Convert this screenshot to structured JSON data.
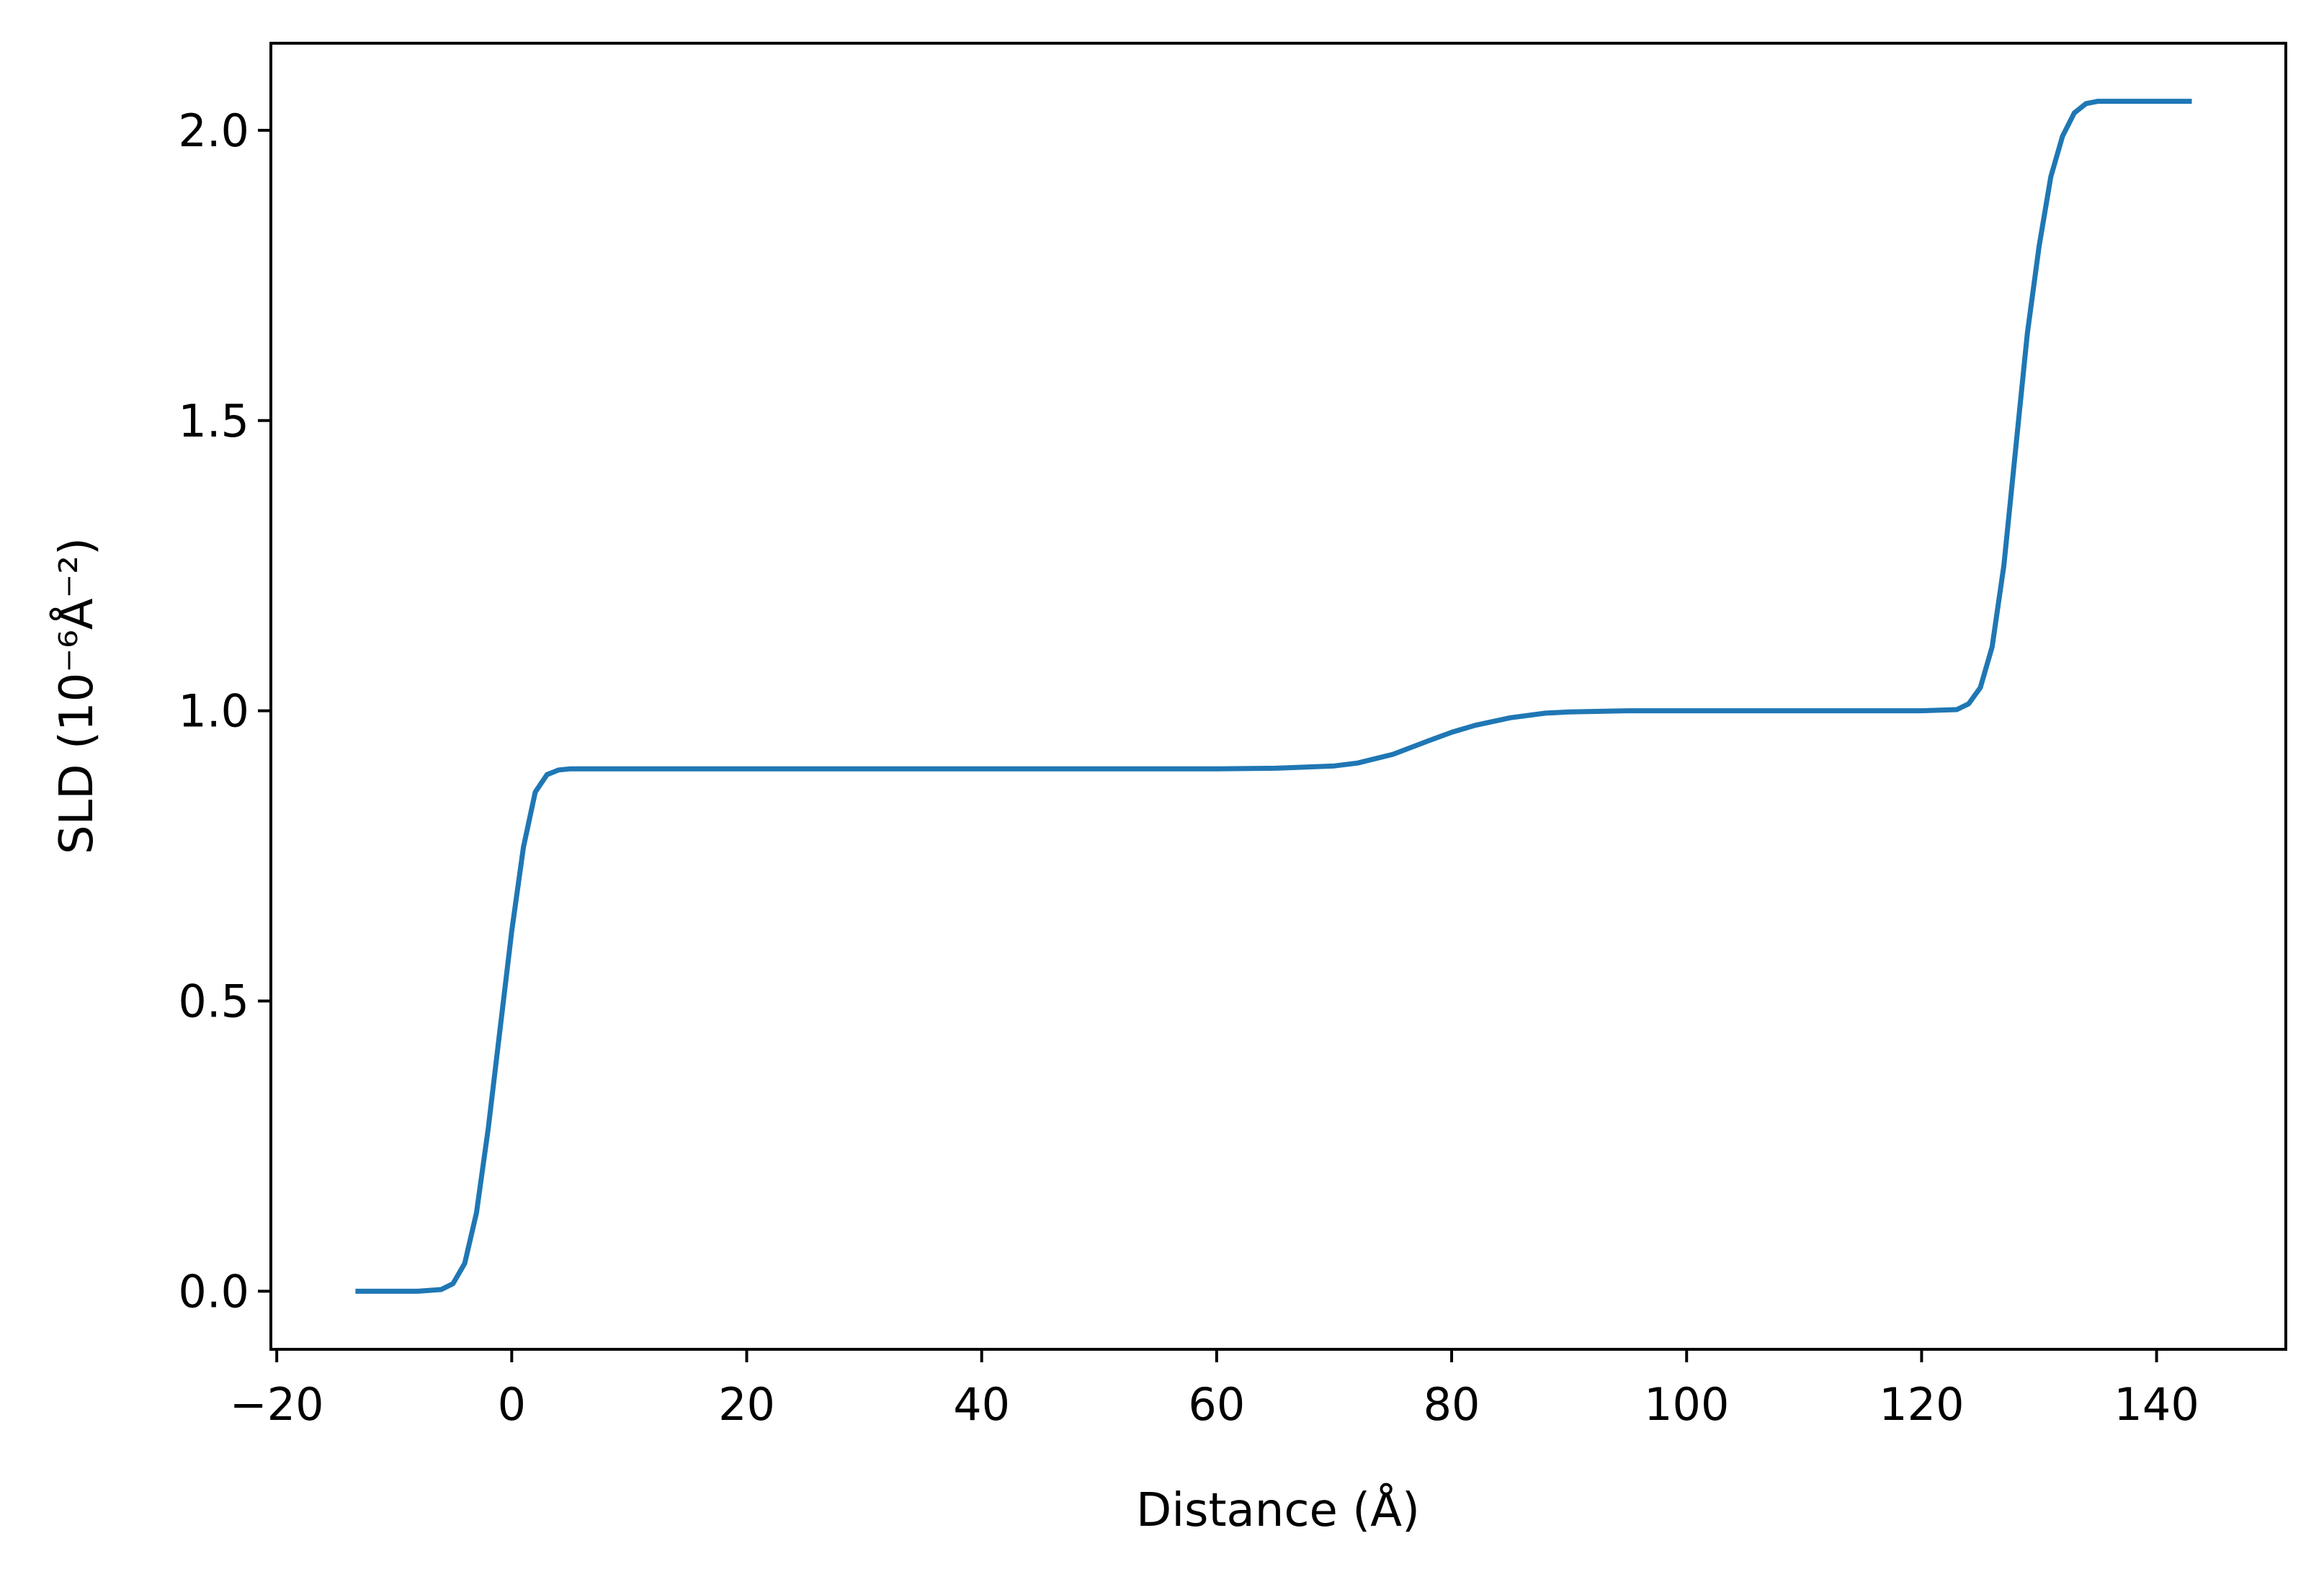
{
  "chart_data": {
    "type": "line",
    "title": "",
    "xlabel": "Distance (Å)",
    "ylabel": "SLD (10⁻⁶Å⁻²)",
    "xlim": [
      -20.5,
      151
    ],
    "ylim": [
      -0.1,
      2.15
    ],
    "xticks": [
      -20,
      0,
      20,
      40,
      60,
      80,
      100,
      120,
      140
    ],
    "xtick_labels": [
      "−20",
      "0",
      "20",
      "40",
      "60",
      "80",
      "100",
      "120",
      "140"
    ],
    "yticks": [
      0.0,
      0.5,
      1.0,
      1.5,
      2.0
    ],
    "ytick_labels": [
      "0.0",
      "0.5",
      "1.0",
      "1.5",
      "2.0"
    ],
    "grid": false,
    "legend": "none",
    "series": [
      {
        "color": "#1f77b4",
        "x": [
          -13.3,
          -10,
          -8,
          -6,
          -5,
          -4,
          -3,
          -2,
          -1,
          0,
          1,
          2,
          3,
          4,
          5,
          6,
          8,
          20,
          40,
          60,
          65,
          70,
          72,
          75,
          78,
          80,
          82,
          85,
          88,
          90,
          95,
          100,
          120,
          123,
          124,
          125,
          126,
          127,
          128,
          129,
          130,
          131,
          132,
          133,
          134,
          135,
          136,
          138,
          143
        ],
        "y": [
          0.0,
          0.0,
          0.0,
          0.003,
          0.013,
          0.048,
          0.135,
          0.28,
          0.45,
          0.62,
          0.765,
          0.86,
          0.89,
          0.898,
          0.9,
          0.9,
          0.9,
          0.9,
          0.9,
          0.9,
          0.901,
          0.905,
          0.91,
          0.925,
          0.948,
          0.963,
          0.975,
          0.988,
          0.996,
          0.998,
          1.0,
          1.0,
          1.0,
          1.002,
          1.012,
          1.04,
          1.11,
          1.25,
          1.45,
          1.65,
          1.8,
          1.92,
          1.99,
          2.03,
          2.046,
          2.05,
          2.05,
          2.05,
          2.05
        ]
      }
    ]
  }
}
